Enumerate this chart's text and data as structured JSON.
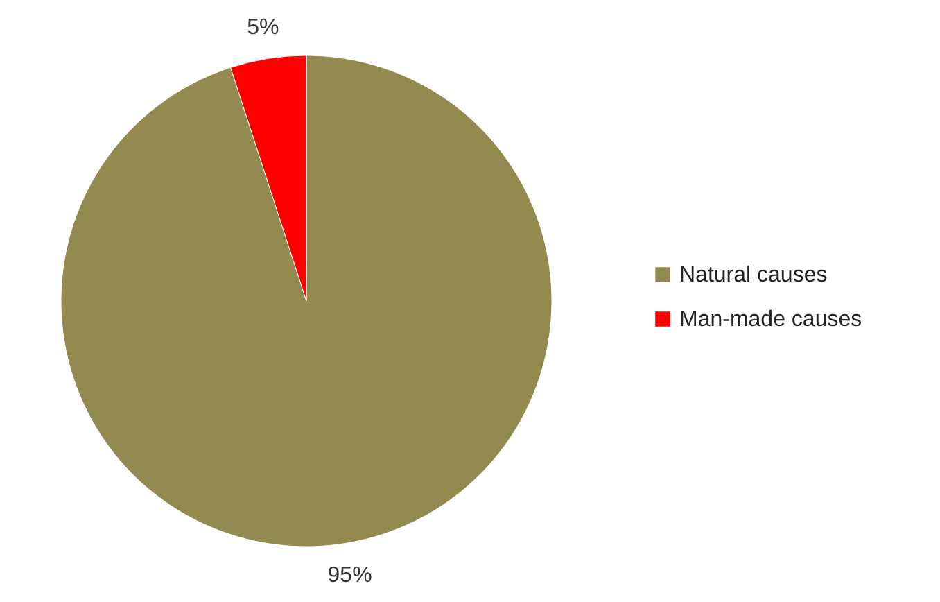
{
  "chart_data": {
    "type": "pie",
    "categories": [
      "Natural causes",
      "Man-made causes"
    ],
    "values": [
      95,
      5
    ],
    "colors": [
      "#938a4f",
      "#ff0000"
    ],
    "value_labels": [
      "95%",
      "5%"
    ],
    "legend": "right"
  }
}
